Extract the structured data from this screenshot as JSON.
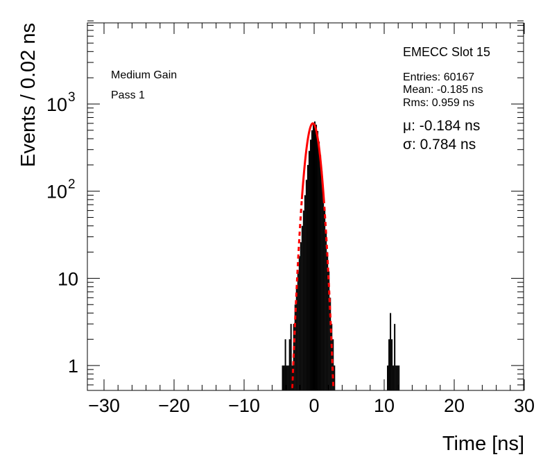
{
  "chart_data": {
    "type": "histogram",
    "title": "",
    "xlabel": "Time [ns]",
    "ylabel": "Events / 0.02 ns",
    "xlim": [
      -30,
      30
    ],
    "ylim": [
      0.55,
      9000
    ],
    "yscale": "log",
    "x_ticks": [
      {
        "value": -30,
        "label": "−30"
      },
      {
        "value": -20,
        "label": "−20"
      },
      {
        "value": -10,
        "label": "−10"
      },
      {
        "value": 0,
        "label": "0"
      },
      {
        "value": 10,
        "label": "10"
      },
      {
        "value": 20,
        "label": "20"
      },
      {
        "value": 30,
        "label": "30"
      }
    ],
    "y_ticks": [
      {
        "value": 1,
        "label": "1",
        "exp": ""
      },
      {
        "value": 10,
        "label": "10",
        "exp": ""
      },
      {
        "value": 100,
        "label": "10",
        "exp": "2"
      },
      {
        "value": 1000,
        "label": "10",
        "exp": "3"
      }
    ],
    "colors": {
      "histogram": "#000000",
      "fit": "#ff0000"
    },
    "annotations": {
      "gain": "Medium Gain",
      "pass": "Pass 1",
      "slot": "EMECC Slot 15",
      "entries": "Entries: 60167",
      "mean": "Mean: -0.185 ns",
      "rms": "Rms: 0.959 ns",
      "mu": "μ: -0.184 ns",
      "sigma": "σ: 0.784 ns"
    },
    "fit": {
      "type": "gaussian",
      "mu": -0.184,
      "sigma": 0.784,
      "amplitude": 600
    },
    "series": [
      {
        "values": [
          [
            -4.6,
            1
          ],
          [
            -4.4,
            1
          ],
          [
            -4.2,
            2
          ],
          [
            -4.0,
            1
          ],
          [
            -3.8,
            1
          ],
          [
            -3.6,
            2
          ],
          [
            -3.4,
            3
          ],
          [
            -3.2,
            1
          ],
          [
            -3.0,
            3
          ],
          [
            -2.8,
            5
          ],
          [
            -2.6,
            8
          ],
          [
            -2.4,
            12
          ],
          [
            -2.2,
            18
          ],
          [
            -2.0,
            26
          ],
          [
            -1.8,
            40
          ],
          [
            -1.6,
            60
          ],
          [
            -1.4,
            90
          ],
          [
            -1.2,
            135
          ],
          [
            -1.0,
            200
          ],
          [
            -0.8,
            290
          ],
          [
            -0.6,
            390
          ],
          [
            -0.4,
            500
          ],
          [
            -0.2,
            590
          ],
          [
            0.0,
            630
          ],
          [
            0.2,
            580
          ],
          [
            0.4,
            490
          ],
          [
            0.6,
            370
          ],
          [
            0.8,
            260
          ],
          [
            1.0,
            170
          ],
          [
            1.2,
            105
          ],
          [
            1.4,
            60
          ],
          [
            1.6,
            35
          ],
          [
            1.8,
            20
          ],
          [
            2.0,
            12
          ],
          [
            2.2,
            6
          ],
          [
            2.4,
            3
          ],
          [
            2.6,
            2
          ],
          [
            2.8,
            1
          ],
          [
            10.4,
            1
          ],
          [
            10.6,
            2
          ],
          [
            10.8,
            4
          ],
          [
            11.0,
            2
          ],
          [
            11.2,
            1
          ],
          [
            11.4,
            3
          ],
          [
            11.6,
            1
          ],
          [
            11.8,
            1
          ],
          [
            12.0,
            1
          ]
        ]
      }
    ]
  }
}
